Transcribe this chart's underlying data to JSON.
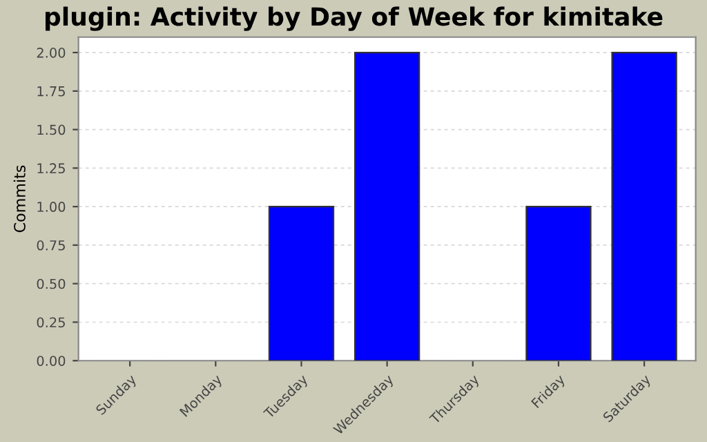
{
  "chart_data": {
    "type": "bar",
    "title": "plugin: Activity by Day of Week for kimitake",
    "ylabel": "Commits",
    "categories": [
      "Sunday",
      "Monday",
      "Tuesday",
      "Wednesday",
      "Thursday",
      "Friday",
      "Saturday"
    ],
    "values": [
      0,
      0,
      1,
      2,
      0,
      1,
      2
    ],
    "color": "#0000ff",
    "ylim": [
      0,
      2.1
    ],
    "yticks": [
      {
        "value": 0,
        "label": "0.00"
      },
      {
        "value": 0.25,
        "label": "0.25"
      },
      {
        "value": 0.5,
        "label": "0.50"
      },
      {
        "value": 0.75,
        "label": "0.75"
      },
      {
        "value": 1,
        "label": "1.00"
      },
      {
        "value": 1.25,
        "label": "1.25"
      },
      {
        "value": 1.5,
        "label": "1.50"
      },
      {
        "value": 1.75,
        "label": "1.75"
      },
      {
        "value": 2,
        "label": "2.00"
      }
    ],
    "grid": "y"
  }
}
